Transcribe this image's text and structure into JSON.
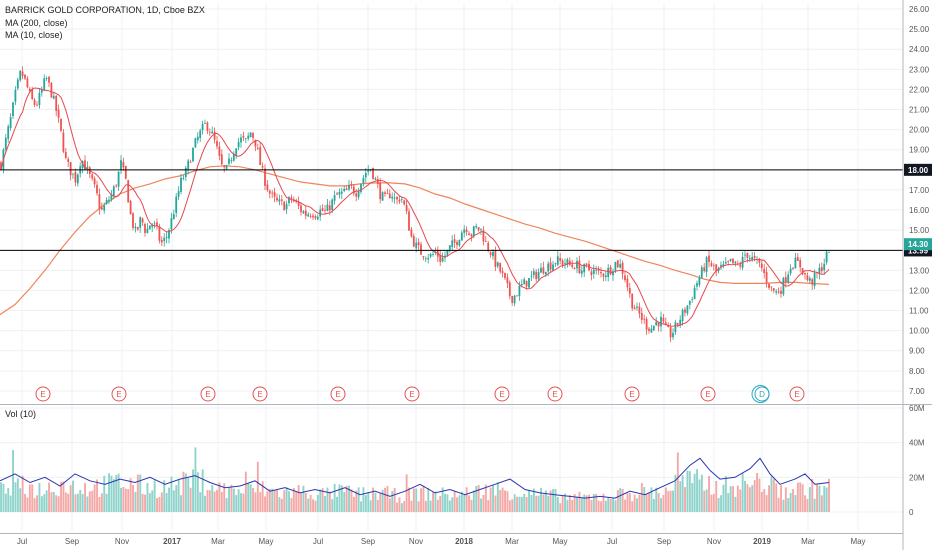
{
  "header": {
    "title": "BARRICK GOLD CORPORATION, 1D, Cboe BZX",
    "indicators": [
      "MA (200, close)",
      "MA (10, close)"
    ],
    "volume_label": "Vol (10)"
  },
  "colors": {
    "up": "#26a69a",
    "down": "#ef5350",
    "ma200": "#f0855a",
    "ma10": "#e8474f",
    "volume_ma": "#2b35af",
    "hline": "#000000",
    "grid": "#eef0f3",
    "axis_text": "#555555",
    "last_price_bg": "#26a69a",
    "hline_label_bg": "#131722",
    "earnings": "#e35252",
    "dividend": "#2aa8c4"
  },
  "chart_data": [
    {
      "type": "candlestick",
      "title": "BARRICK GOLD CORPORATION, 1D, Cboe BZX",
      "x_axis_ticks": [
        "Jul",
        "Sep",
        "Nov",
        "2017",
        "Mar",
        "May",
        "Jul",
        "Sep",
        "Nov",
        "2018",
        "Mar",
        "May",
        "Jul",
        "Sep",
        "Nov",
        "2019",
        "Mar",
        "May"
      ],
      "price_ticks": [
        "26.00",
        "25.00",
        "24.00",
        "23.00",
        "22.00",
        "21.00",
        "20.00",
        "19.00",
        "18.00",
        "17.00",
        "16.00",
        "15.00",
        "14.00",
        "13.00",
        "12.00",
        "11.00",
        "10.00",
        "9.00",
        "8.00",
        "7.00"
      ],
      "ylim": [
        6.4,
        26.3
      ],
      "price_path": [
        [
          0,
          18.3
        ],
        [
          5,
          19.5
        ],
        [
          10,
          20.6
        ],
        [
          15,
          21.9
        ],
        [
          20,
          22.9
        ],
        [
          25,
          22.3
        ],
        [
          30,
          21.5
        ],
        [
          35,
          21.2
        ],
        [
          40,
          21.8
        ],
        [
          45,
          22.6
        ],
        [
          50,
          21.9
        ],
        [
          55,
          21.0
        ],
        [
          60,
          19.8
        ],
        [
          65,
          18.4
        ],
        [
          70,
          17.9
        ],
        [
          75,
          17.5
        ],
        [
          80,
          18.6
        ],
        [
          85,
          18.1
        ],
        [
          90,
          17.5
        ],
        [
          95,
          16.9
        ],
        [
          100,
          15.9
        ],
        [
          105,
          16.3
        ],
        [
          110,
          16.7
        ],
        [
          115,
          17.3
        ],
        [
          120,
          18.3
        ],
        [
          125,
          17.4
        ],
        [
          130,
          15.6
        ],
        [
          135,
          14.8
        ],
        [
          140,
          15.6
        ],
        [
          145,
          14.9
        ],
        [
          150,
          15.4
        ],
        [
          155,
          15.1
        ],
        [
          160,
          14.3
        ],
        [
          165,
          14.6
        ],
        [
          170,
          15.4
        ],
        [
          175,
          16.4
        ],
        [
          180,
          17.4
        ],
        [
          185,
          17.9
        ],
        [
          190,
          18.7
        ],
        [
          195,
          19.4
        ],
        [
          200,
          19.9
        ],
        [
          205,
          20.3
        ],
        [
          210,
          19.9
        ],
        [
          215,
          19.2
        ],
        [
          220,
          18.2
        ],
        [
          225,
          17.9
        ],
        [
          230,
          18.6
        ],
        [
          235,
          19.3
        ],
        [
          240,
          19.5
        ],
        [
          245,
          19.4
        ],
        [
          250,
          19.9
        ],
        [
          255,
          19.3
        ],
        [
          260,
          18.1
        ],
        [
          265,
          17.3
        ],
        [
          270,
          16.7
        ],
        [
          275,
          16.4
        ],
        [
          280,
          16.3
        ],
        [
          285,
          16.2
        ],
        [
          290,
          16.6
        ],
        [
          295,
          16.3
        ],
        [
          300,
          16.0
        ],
        [
          305,
          15.8
        ],
        [
          310,
          15.9
        ],
        [
          315,
          15.8
        ],
        [
          320,
          16.0
        ],
        [
          325,
          15.9
        ],
        [
          330,
          16.3
        ],
        [
          335,
          16.7
        ],
        [
          340,
          16.8
        ],
        [
          345,
          16.9
        ],
        [
          350,
          17.1
        ],
        [
          355,
          16.9
        ],
        [
          360,
          17.4
        ],
        [
          365,
          17.9
        ],
        [
          370,
          18.1
        ],
        [
          375,
          17.4
        ],
        [
          380,
          16.7
        ],
        [
          385,
          16.5
        ],
        [
          390,
          16.9
        ],
        [
          395,
          16.4
        ],
        [
          400,
          16.7
        ],
        [
          405,
          15.9
        ],
        [
          410,
          14.7
        ],
        [
          415,
          14.2
        ],
        [
          420,
          13.9
        ],
        [
          425,
          13.8
        ],
        [
          430,
          13.7
        ],
        [
          435,
          13.9
        ],
        [
          440,
          13.5
        ],
        [
          445,
          13.8
        ],
        [
          450,
          14.2
        ],
        [
          455,
          14.4
        ],
        [
          460,
          14.9
        ],
        [
          465,
          15.2
        ],
        [
          470,
          14.8
        ],
        [
          475,
          15.1
        ],
        [
          480,
          15.0
        ],
        [
          485,
          14.3
        ],
        [
          490,
          13.9
        ],
        [
          495,
          13.3
        ],
        [
          500,
          12.9
        ],
        [
          505,
          12.3
        ],
        [
          510,
          11.6
        ],
        [
          515,
          11.8
        ],
        [
          520,
          12.2
        ],
        [
          525,
          12.4
        ],
        [
          530,
          12.6
        ],
        [
          535,
          12.8
        ],
        [
          540,
          13.0
        ],
        [
          545,
          13.2
        ],
        [
          550,
          13.3
        ],
        [
          555,
          13.5
        ],
        [
          560,
          13.4
        ],
        [
          565,
          13.4
        ],
        [
          570,
          13.2
        ],
        [
          575,
          13.3
        ],
        [
          580,
          13.0
        ],
        [
          585,
          13.1
        ],
        [
          590,
          13.0
        ],
        [
          595,
          12.9
        ],
        [
          600,
          12.8
        ],
        [
          605,
          12.9
        ],
        [
          610,
          13.1
        ],
        [
          615,
          13.4
        ],
        [
          620,
          13.2
        ],
        [
          625,
          12.5
        ],
        [
          630,
          11.5
        ],
        [
          635,
          11.0
        ],
        [
          640,
          10.7
        ],
        [
          645,
          10.3
        ],
        [
          650,
          10.1
        ],
        [
          655,
          10.4
        ],
        [
          660,
          10.5
        ],
        [
          665,
          10.0
        ],
        [
          670,
          9.8
        ],
        [
          675,
          10.2
        ],
        [
          680,
          10.7
        ],
        [
          685,
          11.1
        ],
        [
          690,
          11.6
        ],
        [
          695,
          12.3
        ],
        [
          700,
          12.8
        ],
        [
          705,
          13.4
        ],
        [
          710,
          13.3
        ],
        [
          715,
          12.9
        ],
        [
          720,
          13.1
        ],
        [
          725,
          13.2
        ],
        [
          730,
          13.4
        ],
        [
          735,
          13.2
        ],
        [
          740,
          13.3
        ],
        [
          745,
          13.9
        ],
        [
          750,
          13.6
        ],
        [
          755,
          13.4
        ],
        [
          760,
          13.2
        ],
        [
          765,
          12.6
        ],
        [
          770,
          12.1
        ],
        [
          775,
          11.9
        ],
        [
          780,
          12.1
        ],
        [
          785,
          12.7
        ],
        [
          790,
          13.3
        ],
        [
          795,
          13.4
        ],
        [
          800,
          13.2
        ],
        [
          805,
          12.6
        ],
        [
          810,
          12.4
        ],
        [
          815,
          12.7
        ],
        [
          820,
          13.1
        ],
        [
          825,
          13.6
        ],
        [
          829,
          14.3
        ]
      ],
      "ma200_path": [
        [
          0,
          10.8
        ],
        [
          15,
          11.3
        ],
        [
          30,
          12.1
        ],
        [
          45,
          13.0
        ],
        [
          60,
          14.0
        ],
        [
          75,
          14.9
        ],
        [
          90,
          15.7
        ],
        [
          105,
          16.3
        ],
        [
          120,
          16.8
        ],
        [
          135,
          17.1
        ],
        [
          150,
          17.3
        ],
        [
          165,
          17.55
        ],
        [
          180,
          17.7
        ],
        [
          195,
          17.95
        ],
        [
          210,
          18.15
        ],
        [
          225,
          18.2
        ],
        [
          240,
          18.15
        ],
        [
          255,
          18.0
        ],
        [
          270,
          17.8
        ],
        [
          285,
          17.6
        ],
        [
          300,
          17.4
        ],
        [
          315,
          17.3
        ],
        [
          330,
          17.2
        ],
        [
          345,
          17.2
        ],
        [
          360,
          17.3
        ],
        [
          375,
          17.35
        ],
        [
          390,
          17.35
        ],
        [
          405,
          17.3
        ],
        [
          420,
          17.1
        ],
        [
          435,
          16.8
        ],
        [
          450,
          16.6
        ],
        [
          465,
          16.3
        ],
        [
          480,
          16.05
        ],
        [
          495,
          15.8
        ],
        [
          510,
          15.55
        ],
        [
          525,
          15.3
        ],
        [
          540,
          15.1
        ],
        [
          555,
          14.85
        ],
        [
          570,
          14.65
        ],
        [
          585,
          14.45
        ],
        [
          600,
          14.2
        ],
        [
          615,
          13.95
        ],
        [
          630,
          13.7
        ],
        [
          645,
          13.45
        ],
        [
          660,
          13.25
        ],
        [
          675,
          13.0
        ],
        [
          690,
          12.8
        ],
        [
          705,
          12.55
        ],
        [
          720,
          12.4
        ],
        [
          735,
          12.35
        ],
        [
          750,
          12.35
        ],
        [
          765,
          12.35
        ],
        [
          780,
          12.4
        ],
        [
          795,
          12.4
        ],
        [
          810,
          12.35
        ],
        [
          829,
          12.3
        ]
      ],
      "horizontal_levels": [
        {
          "value": 18.0,
          "label": "18.00"
        },
        {
          "value": 13.99,
          "label": "13.99"
        }
      ],
      "last_price": {
        "value": 14.3,
        "label": "14.30"
      },
      "events": [
        {
          "t": 43,
          "code": "E"
        },
        {
          "t": 119,
          "code": "E"
        },
        {
          "t": 208,
          "code": "E"
        },
        {
          "t": 260,
          "code": "E"
        },
        {
          "t": 338,
          "code": "E"
        },
        {
          "t": 412,
          "code": "E"
        },
        {
          "t": 502,
          "code": "E"
        },
        {
          "t": 555,
          "code": "E"
        },
        {
          "t": 632,
          "code": "E"
        },
        {
          "t": 708,
          "code": "E"
        },
        {
          "t": 762,
          "code": "D"
        },
        {
          "t": 797,
          "code": "E"
        }
      ]
    },
    {
      "type": "bar",
      "title": "Vol (10)",
      "y_ticks": [
        "60M",
        "40M",
        "20M",
        "0"
      ],
      "ylim": [
        0,
        64
      ],
      "volume_profile": [
        [
          0,
          12
        ],
        [
          20,
          14
        ],
        [
          40,
          13
        ],
        [
          60,
          16
        ],
        [
          80,
          14
        ],
        [
          100,
          15
        ],
        [
          120,
          17
        ],
        [
          140,
          15
        ],
        [
          160,
          14
        ],
        [
          180,
          16
        ],
        [
          200,
          18
        ],
        [
          220,
          13
        ],
        [
          240,
          12
        ],
        [
          260,
          13
        ],
        [
          280,
          11
        ],
        [
          300,
          12
        ],
        [
          320,
          10
        ],
        [
          340,
          12
        ],
        [
          360,
          10
        ],
        [
          380,
          11
        ],
        [
          400,
          9
        ],
        [
          420,
          11
        ],
        [
          440,
          10
        ],
        [
          460,
          10
        ],
        [
          480,
          12
        ],
        [
          500,
          13
        ],
        [
          520,
          11
        ],
        [
          540,
          10
        ],
        [
          560,
          9
        ],
        [
          580,
          8
        ],
        [
          600,
          9
        ],
        [
          620,
          10
        ],
        [
          640,
          12
        ],
        [
          660,
          11
        ],
        [
          680,
          18
        ],
        [
          700,
          17
        ],
        [
          720,
          14
        ],
        [
          740,
          16
        ],
        [
          760,
          17
        ],
        [
          780,
          12
        ],
        [
          800,
          13
        ],
        [
          829,
          14
        ]
      ],
      "volume_ma": [
        [
          0,
          18
        ],
        [
          15,
          22
        ],
        [
          30,
          17
        ],
        [
          45,
          20
        ],
        [
          60,
          15
        ],
        [
          75,
          22
        ],
        [
          90,
          18
        ],
        [
          105,
          16
        ],
        [
          120,
          19
        ],
        [
          135,
          17
        ],
        [
          150,
          20
        ],
        [
          165,
          16
        ],
        [
          180,
          19
        ],
        [
          195,
          21
        ],
        [
          210,
          17
        ],
        [
          225,
          14
        ],
        [
          240,
          15
        ],
        [
          255,
          18
        ],
        [
          270,
          12
        ],
        [
          285,
          14
        ],
        [
          300,
          11
        ],
        [
          315,
          13
        ],
        [
          330,
          11
        ],
        [
          345,
          14
        ],
        [
          360,
          10
        ],
        [
          375,
          12
        ],
        [
          390,
          9
        ],
        [
          405,
          12
        ],
        [
          420,
          16
        ],
        [
          435,
          11
        ],
        [
          450,
          13
        ],
        [
          465,
          10
        ],
        [
          480,
          13
        ],
        [
          495,
          16
        ],
        [
          510,
          19
        ],
        [
          525,
          13
        ],
        [
          540,
          11
        ],
        [
          555,
          10
        ],
        [
          570,
          9
        ],
        [
          585,
          8
        ],
        [
          600,
          9
        ],
        [
          615,
          8
        ],
        [
          630,
          12
        ],
        [
          645,
          10
        ],
        [
          660,
          14
        ],
        [
          675,
          18
        ],
        [
          690,
          27
        ],
        [
          700,
          31
        ],
        [
          710,
          24
        ],
        [
          720,
          19
        ],
        [
          735,
          20
        ],
        [
          750,
          25
        ],
        [
          760,
          31
        ],
        [
          770,
          22
        ],
        [
          780,
          16
        ],
        [
          795,
          19
        ],
        [
          805,
          22
        ],
        [
          815,
          16
        ],
        [
          829,
          17
        ]
      ]
    }
  ]
}
